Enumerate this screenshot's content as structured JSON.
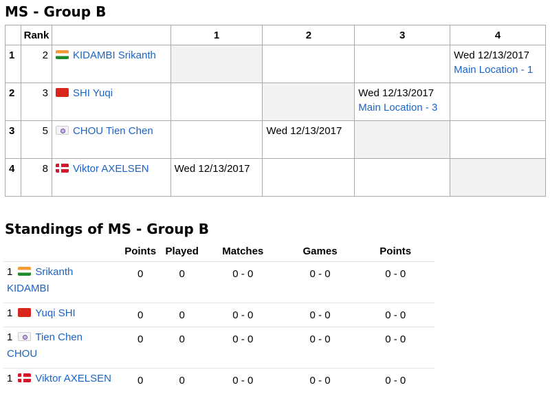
{
  "draw": {
    "title": "MS - Group B",
    "headers": {
      "rank": "Rank",
      "cols": [
        "1",
        "2",
        "3",
        "4"
      ]
    },
    "rows": [
      {
        "index": "1",
        "rank": "2",
        "flag": "india-flag",
        "player": "KIDAMBI Srikanth",
        "matches": {
          "4": {
            "date": "Wed 12/13/2017",
            "location": "Main Location - 1"
          }
        }
      },
      {
        "index": "2",
        "rank": "3",
        "flag": "china-flag",
        "player": "SHI Yuqi",
        "matches": {
          "3": {
            "date": "Wed 12/13/2017",
            "location": "Main Location - 3"
          }
        }
      },
      {
        "index": "3",
        "rank": "5",
        "flag": "chinese-taipei-flag",
        "player": "CHOU Tien Chen",
        "matches": {
          "2": {
            "date": "Wed 12/13/2017"
          }
        }
      },
      {
        "index": "4",
        "rank": "8",
        "flag": "denmark-flag",
        "player": "Viktor AXELSEN",
        "matches": {
          "1": {
            "date": "Wed 12/13/2017"
          }
        }
      }
    ]
  },
  "standings": {
    "title": "Standings of MS - Group B",
    "headers": [
      "Points",
      "Played",
      "Matches",
      "Games",
      "Points"
    ],
    "rows": [
      {
        "pos": "1",
        "flag": "india-flag",
        "player": "Srikanth KIDAMBI",
        "points": "0",
        "played": "0",
        "matches": "0 - 0",
        "games": "0 - 0",
        "pts": "0 - 0"
      },
      {
        "pos": "1",
        "flag": "china-flag",
        "player": "Yuqi SHI",
        "points": "0",
        "played": "0",
        "matches": "0 - 0",
        "games": "0 - 0",
        "pts": "0 - 0"
      },
      {
        "pos": "1",
        "flag": "chinese-taipei-flag",
        "player": "Tien Chen CHOU",
        "points": "0",
        "played": "0",
        "matches": "0 - 0",
        "games": "0 - 0",
        "pts": "0 - 0"
      },
      {
        "pos": "1",
        "flag": "denmark-flag",
        "player": "Viktor AXELSEN",
        "points": "0",
        "played": "0",
        "matches": "0 - 0",
        "games": "0 - 0",
        "pts": "0 - 0"
      }
    ]
  },
  "colors": {
    "link": "#1a64c8",
    "self_cell": "#f2f2f2",
    "border": "#aaaaaa"
  }
}
